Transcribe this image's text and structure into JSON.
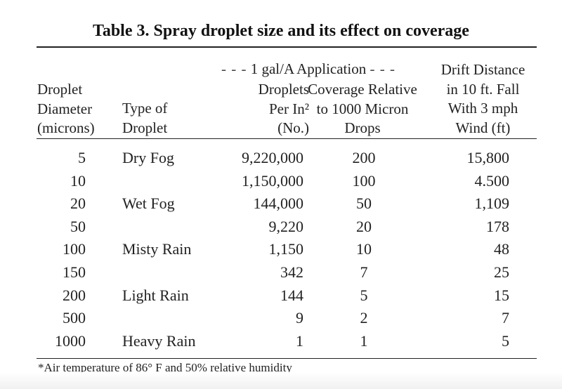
{
  "title": "Table 3. Spray droplet size and its effect on coverage",
  "headers": {
    "span_label": "1 gal/A Application",
    "span_dashes_left": "- - -",
    "span_dashes_right": "- - -",
    "diameter": [
      "Droplet",
      "Diameter",
      "(microns)"
    ],
    "type": [
      "Type of",
      "Droplet"
    ],
    "droplets": [
      "Droplets",
      "Per In²",
      "(No.)"
    ],
    "coverage": [
      "Coverage Relative",
      "to 1000 Micron",
      "Drops"
    ],
    "drift": [
      "Drift Distance",
      "in 10 ft. Fall",
      "With 3 mph",
      "Wind (ft)"
    ]
  },
  "rows": [
    {
      "diameter": "5",
      "type": "Dry Fog",
      "droplets": "9,220,000",
      "coverage": "200",
      "drift": "15,800"
    },
    {
      "diameter": "10",
      "type": "",
      "droplets": "1,150,000",
      "coverage": "100",
      "drift": "4.500"
    },
    {
      "diameter": "20",
      "type": "Wet Fog",
      "droplets": "144,000",
      "coverage": "50",
      "drift": "1,109"
    },
    {
      "diameter": "50",
      "type": "",
      "droplets": "9,220",
      "coverage": "20",
      "drift": "178"
    },
    {
      "diameter": "100",
      "type": "Misty Rain",
      "droplets": "1,150",
      "coverage": "10",
      "drift": "48"
    },
    {
      "diameter": "150",
      "type": "",
      "droplets": "342",
      "coverage": "7",
      "drift": "25"
    },
    {
      "diameter": "200",
      "type": "Light Rain",
      "droplets": "144",
      "coverage": "5",
      "drift": "15"
    },
    {
      "diameter": "500",
      "type": "",
      "droplets": "9",
      "coverage": "2",
      "drift": "7"
    },
    {
      "diameter": "1000",
      "type": "Heavy Rain",
      "droplets": "1",
      "coverage": "1",
      "drift": "5"
    }
  ],
  "footnote": "*Air temperature of 86° F and 50% relative humidity"
}
